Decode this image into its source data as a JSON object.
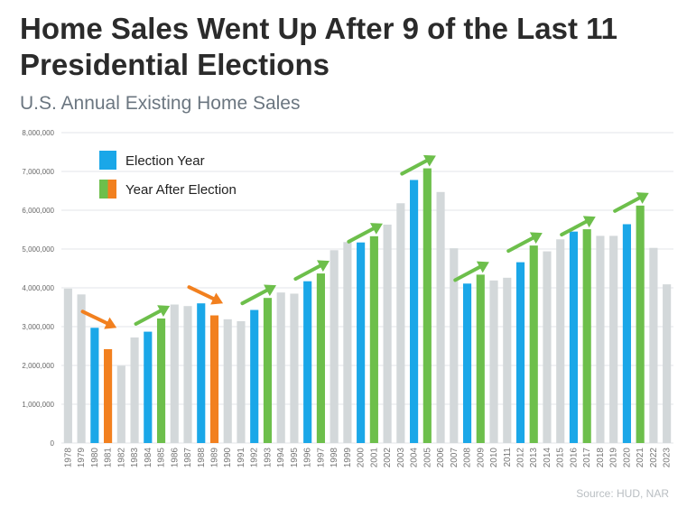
{
  "title": "Home Sales Went Up After 9 of the Last 11 Presidential Elections",
  "subtitle": "U.S. Annual Existing Home Sales",
  "source": "Source: HUD, NAR",
  "colors": {
    "election": "#1aa7e8",
    "after_up": "#6dbf4b",
    "after_down": "#f2801f",
    "other": "#d3d8da",
    "grid": "#e3e6e8"
  },
  "chart_data": {
    "type": "bar",
    "categories": [
      "1978",
      "1979",
      "1980",
      "1981",
      "1982",
      "1983",
      "1984",
      "1985",
      "1986",
      "1987",
      "1988",
      "1989",
      "1990",
      "1991",
      "1992",
      "1993",
      "1994",
      "1995",
      "1996",
      "1997",
      "1998",
      "1999",
      "2000",
      "2001",
      "2002",
      "2003",
      "2004",
      "2005",
      "2006",
      "2007",
      "2008",
      "2009",
      "2010",
      "2011",
      "2012",
      "2013",
      "2014",
      "2015",
      "2016",
      "2017",
      "2018",
      "2019",
      "2020",
      "2021",
      "2022",
      "2023"
    ],
    "values": [
      3980000,
      3830000,
      2970000,
      2420000,
      1990000,
      2720000,
      2870000,
      3210000,
      3570000,
      3530000,
      3600000,
      3290000,
      3190000,
      3140000,
      3430000,
      3740000,
      3880000,
      3850000,
      4170000,
      4370000,
      4970000,
      5180000,
      5170000,
      5330000,
      5630000,
      6180000,
      6780000,
      7080000,
      6470000,
      5020000,
      4110000,
      4340000,
      4190000,
      4260000,
      4660000,
      5090000,
      4940000,
      5250000,
      5450000,
      5510000,
      5340000,
      5340000,
      5640000,
      6120000,
      5030000,
      4090000
    ],
    "bar_kinds": [
      "other",
      "other",
      "election",
      "after_down",
      "other",
      "other",
      "election",
      "after_up",
      "other",
      "other",
      "election",
      "after_down",
      "other",
      "other",
      "election",
      "after_up",
      "other",
      "other",
      "election",
      "after_up",
      "other",
      "other",
      "election",
      "after_up",
      "other",
      "other",
      "election",
      "after_up",
      "other",
      "other",
      "election",
      "after_up",
      "other",
      "other",
      "election",
      "after_up",
      "other",
      "other",
      "election",
      "after_up",
      "other",
      "other",
      "election",
      "after_up",
      "other",
      "other"
    ],
    "ylim": [
      0,
      8000000
    ],
    "yticks": [
      0,
      1000000,
      2000000,
      3000000,
      4000000,
      5000000,
      6000000,
      7000000,
      8000000
    ],
    "ytick_labels": [
      "0",
      "1,000,000",
      "2,000,000",
      "3,000,000",
      "4,000,000",
      "5,000,000",
      "6,000,000",
      "7,000,000",
      "8,000,000"
    ],
    "grid": true,
    "legend_position": "top-left",
    "legend": [
      {
        "label": "Election Year",
        "kind": "election"
      },
      {
        "label": "Year After Election",
        "kind": "after"
      }
    ],
    "trend_arrows": [
      {
        "from": "1980",
        "to": "1981",
        "direction": "down"
      },
      {
        "from": "1984",
        "to": "1985",
        "direction": "up"
      },
      {
        "from": "1988",
        "to": "1989",
        "direction": "down"
      },
      {
        "from": "1992",
        "to": "1993",
        "direction": "up"
      },
      {
        "from": "1996",
        "to": "1997",
        "direction": "up"
      },
      {
        "from": "2000",
        "to": "2001",
        "direction": "up"
      },
      {
        "from": "2004",
        "to": "2005",
        "direction": "up"
      },
      {
        "from": "2008",
        "to": "2009",
        "direction": "up"
      },
      {
        "from": "2012",
        "to": "2013",
        "direction": "up"
      },
      {
        "from": "2016",
        "to": "2017",
        "direction": "up"
      },
      {
        "from": "2020",
        "to": "2021",
        "direction": "up"
      }
    ]
  }
}
